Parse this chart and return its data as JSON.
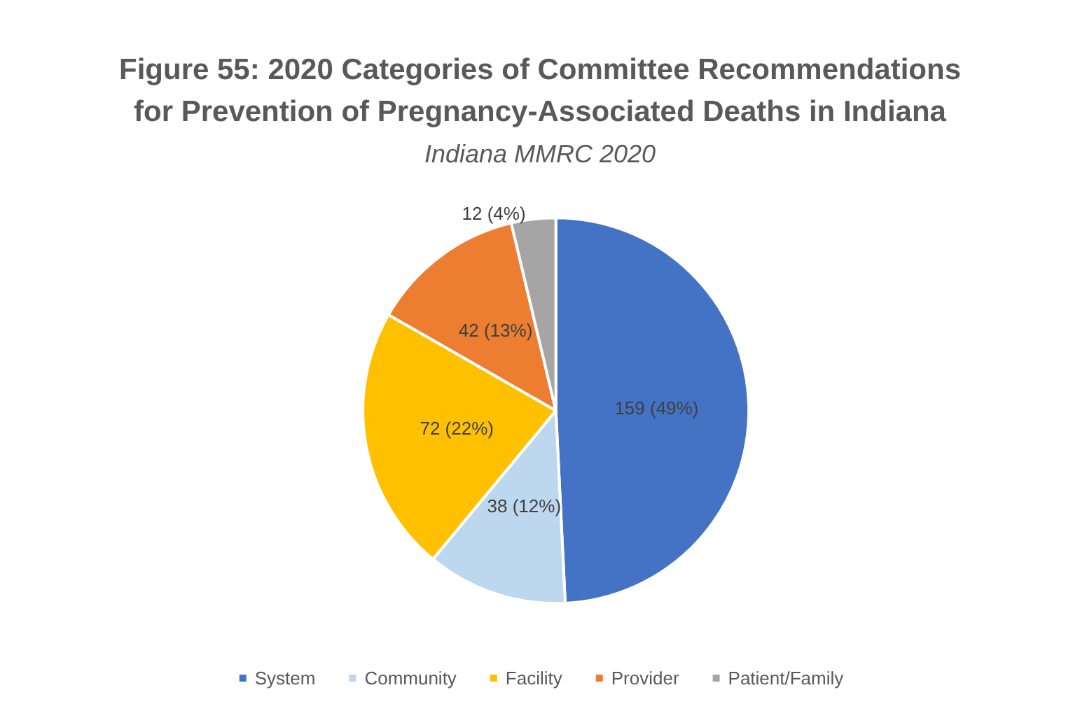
{
  "chart_data": {
    "type": "pie",
    "title": "Figure 55: 2020 Categories of Committee Recommendations\nfor Prevention of Pregnancy-Associated Deaths in Indiana",
    "subtitle": "Indiana MMRC 2020",
    "categories": [
      "System",
      "Community",
      "Facility",
      "Provider",
      "Patient/Family"
    ],
    "values": [
      159,
      38,
      72,
      42,
      12
    ],
    "colors": [
      "#4472c4",
      "#bdd7ee",
      "#ffc000",
      "#ed7d31",
      "#a5a5a5"
    ],
    "value_labels": [
      "159 (49%)",
      "38 (12%)",
      "72 (22%)",
      "42 (13%)",
      "12 (4%)"
    ],
    "legend": "bottom"
  }
}
